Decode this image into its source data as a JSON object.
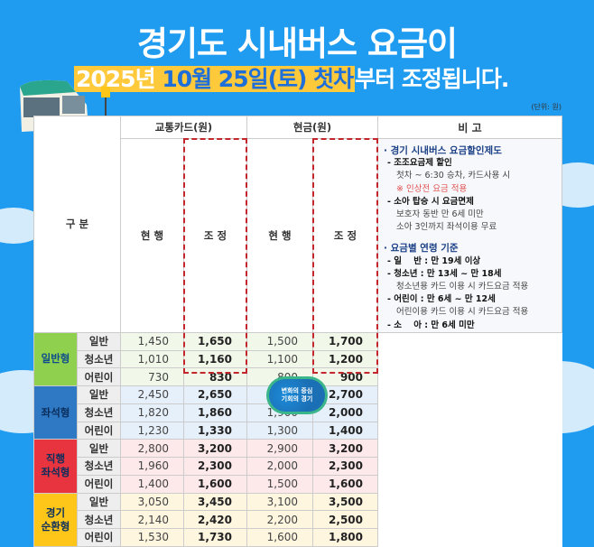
{
  "header": {
    "title": "경기도 시내버스 요금이",
    "subtitle_year": "2025년",
    "subtitle_date": "10월 25일(토) 첫차",
    "subtitle_rest": "부터 조정됩니다.",
    "unit": "(단위: 원)"
  },
  "table": {
    "col_group": "구 분",
    "col_card": "교통카드(원)",
    "col_cash": "현금(원)",
    "col_remarks": "비 고",
    "col_current": "현 행",
    "col_adjusted": "조 정",
    "groups": [
      {
        "name": "일반형",
        "rows": [
          [
            "일반",
            "1,450",
            "1,650",
            "1,500",
            "1,700"
          ],
          [
            "청소년",
            "1,010",
            "1,160",
            "1,100",
            "1,200"
          ],
          [
            "어린이",
            "730",
            "830",
            "800",
            "900"
          ]
        ]
      },
      {
        "name": "좌석형",
        "rows": [
          [
            "일반",
            "2,450",
            "2,650",
            "2,500",
            "2,700"
          ],
          [
            "청소년",
            "1,820",
            "1,860",
            "1,900",
            "2,000"
          ],
          [
            "어린이",
            "1,230",
            "1,330",
            "1,300",
            "1,400"
          ]
        ]
      },
      {
        "name": "직행\n좌석형",
        "rows": [
          [
            "일반",
            "2,800",
            "3,200",
            "2,900",
            "3,200"
          ],
          [
            "청소년",
            "1,960",
            "2,300",
            "2,000",
            "2,300"
          ],
          [
            "어린이",
            "1,400",
            "1,600",
            "1,500",
            "1,600"
          ]
        ]
      },
      {
        "name": "경기\n순환형",
        "rows": [
          [
            "일반",
            "3,050",
            "3,450",
            "3,100",
            "3,500"
          ],
          [
            "청소년",
            "2,140",
            "2,420",
            "2,200",
            "2,500"
          ],
          [
            "어린이",
            "1,530",
            "1,730",
            "1,600",
            "1,800"
          ]
        ]
      }
    ]
  },
  "remarks": {
    "h1": "· 경기 시내버스 요금할인제도",
    "b1": "- 조조요금제 할인",
    "t1": "첫차 ~ 6:30 승차, 카드사용 시",
    "n1": "※ 인상전 요금 적용",
    "b2": "- 소아 탑승 시 요금면제",
    "t2": "보호자 동반 만 6세 미만",
    "t3": "소아 3인까지 좌석이용 무료",
    "h2": "· 요금별 연령 기준",
    "a1": "- 일    반 : 만 19세 이상",
    "a2": "- 청소년 : 만 13세 ~ 만 18세",
    "a2n": "청소년용 카드 이용 시 카드요금 적용",
    "a3": "- 어린이 : 만 6세 ~ 만 12세",
    "a3n": "어린이용 카드 이용 시 카드요금 적용",
    "a4": "- 소    아 : 만 6세 미만"
  },
  "logo": {
    "text": "변화의 중심 기회의 경기"
  },
  "colors": {
    "background": "#1f9cf0",
    "highlight": "#ffc93c",
    "general": "#8fd14f",
    "seat": "#2f78c4",
    "express": "#e8343f",
    "circular": "#ffc61a",
    "dash": "#c4262e"
  }
}
